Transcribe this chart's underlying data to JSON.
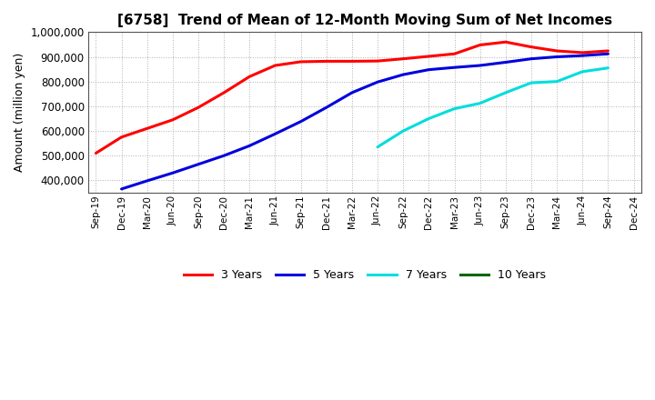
{
  "title": "[6758]  Trend of Mean of 12-Month Moving Sum of Net Incomes",
  "ylabel": "Amount (million yen)",
  "background_color": "#ffffff",
  "grid_color": "#b0b0b0",
  "x_labels": [
    "Sep-19",
    "Dec-19",
    "Mar-20",
    "Jun-20",
    "Sep-20",
    "Dec-20",
    "Mar-21",
    "Jun-21",
    "Sep-21",
    "Dec-21",
    "Mar-22",
    "Jun-22",
    "Sep-22",
    "Dec-22",
    "Mar-23",
    "Jun-23",
    "Sep-23",
    "Dec-23",
    "Mar-24",
    "Jun-24",
    "Sep-24",
    "Dec-24"
  ],
  "series": [
    {
      "name": "3 Years",
      "color": "#ff0000",
      "values": [
        510000,
        575000,
        610000,
        645000,
        695000,
        755000,
        820000,
        865000,
        880000,
        882000,
        882000,
        883000,
        892000,
        902000,
        912000,
        948000,
        960000,
        940000,
        924000,
        917000,
        924000,
        null
      ]
    },
    {
      "name": "5 Years",
      "color": "#0000dd",
      "values": [
        null,
        365000,
        398000,
        430000,
        465000,
        500000,
        540000,
        588000,
        638000,
        695000,
        755000,
        798000,
        828000,
        848000,
        857000,
        865000,
        878000,
        892000,
        900000,
        905000,
        912000,
        null
      ]
    },
    {
      "name": "7 Years",
      "color": "#00dddd",
      "values": [
        null,
        null,
        null,
        null,
        null,
        null,
        null,
        null,
        null,
        null,
        null,
        535000,
        600000,
        650000,
        690000,
        712000,
        755000,
        795000,
        800000,
        840000,
        855000,
        null
      ]
    },
    {
      "name": "10 Years",
      "color": "#006600",
      "values": [
        null,
        null,
        null,
        null,
        null,
        null,
        null,
        null,
        null,
        null,
        null,
        null,
        null,
        null,
        null,
        null,
        null,
        null,
        null,
        null,
        null,
        null
      ]
    }
  ],
  "ylim": [
    350000,
    1000000
  ],
  "yticks": [
    400000,
    500000,
    600000,
    700000,
    800000,
    900000,
    1000000
  ]
}
